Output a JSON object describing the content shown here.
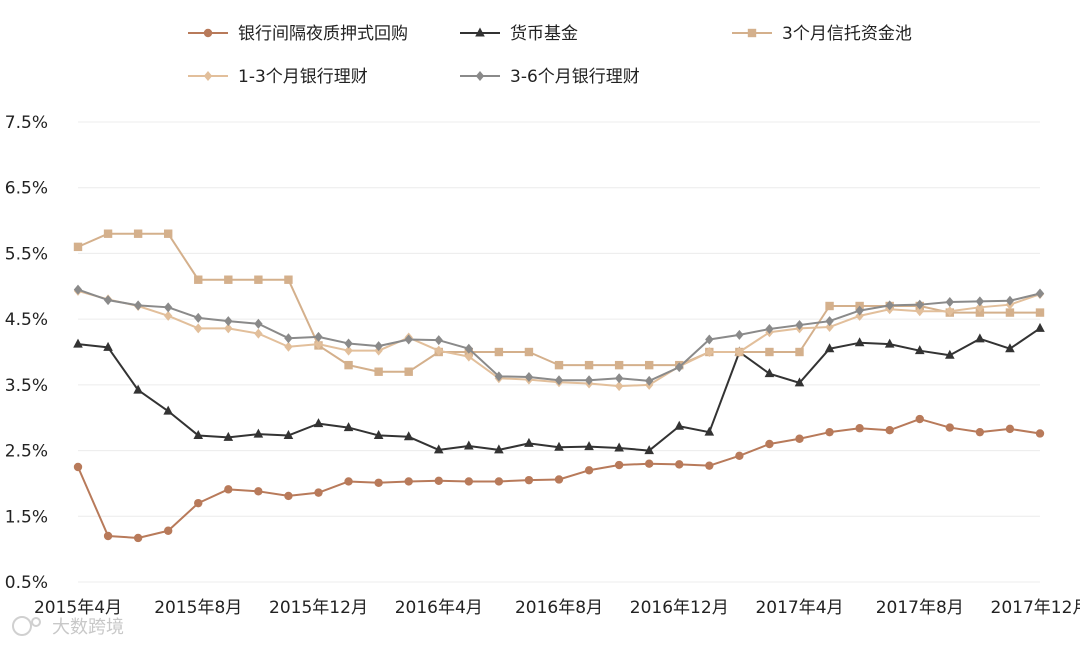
{
  "chart_data": {
    "type": "line",
    "title": "",
    "xlabel": "",
    "ylabel": "",
    "ylim": [
      0.5,
      7.5
    ],
    "yticks": [
      "7.5%",
      "6.5%",
      "5.5%",
      "4.5%",
      "3.5%",
      "2.5%",
      "1.5%",
      "0.5%"
    ],
    "ytick_values": [
      7.5,
      6.5,
      5.5,
      4.5,
      3.5,
      2.5,
      1.5,
      0.5
    ],
    "x": [
      "2015-04",
      "2015-05",
      "2015-06",
      "2015-07",
      "2015-08",
      "2015-09",
      "2015-10",
      "2015-11",
      "2015-12",
      "2016-01",
      "2016-02",
      "2016-03",
      "2016-04",
      "2016-05",
      "2016-06",
      "2016-07",
      "2016-08",
      "2016-09",
      "2016-10",
      "2016-11",
      "2016-12",
      "2017-01",
      "2017-02",
      "2017-03",
      "2017-04",
      "2017-05",
      "2017-06",
      "2017-07",
      "2017-08",
      "2017-09",
      "2017-10",
      "2017-11",
      "2017-12"
    ],
    "xticks": [
      {
        "index": 0,
        "label": "2015年4月"
      },
      {
        "index": 4,
        "label": "2015年8月"
      },
      {
        "index": 8,
        "label": "2015年12月"
      },
      {
        "index": 12,
        "label": "2016年4月"
      },
      {
        "index": 16,
        "label": "2016年8月"
      },
      {
        "index": 20,
        "label": "2016年12月"
      },
      {
        "index": 24,
        "label": "2017年4月"
      },
      {
        "index": 28,
        "label": "2017年8月"
      },
      {
        "index": 32,
        "label": "2017年12月"
      }
    ],
    "grid": true,
    "legend_position": "top",
    "series": [
      {
        "name": "银行间隔夜质押式回购",
        "color": "#b87a5a",
        "marker": "circle",
        "values": [
          2.25,
          1.2,
          1.17,
          1.28,
          1.7,
          1.91,
          1.88,
          1.81,
          1.86,
          2.03,
          2.01,
          2.03,
          2.04,
          2.03,
          2.03,
          2.05,
          2.06,
          2.2,
          2.28,
          2.3,
          2.29,
          2.27,
          2.42,
          2.6,
          2.68,
          2.78,
          2.84,
          2.81,
          2.98,
          2.85,
          2.78,
          2.83,
          2.76
        ]
      },
      {
        "name": "货币基金",
        "color": "#333333",
        "marker": "triangle",
        "values": [
          4.12,
          4.07,
          3.42,
          3.1,
          2.73,
          2.7,
          2.75,
          2.73,
          2.91,
          2.85,
          2.73,
          2.71,
          2.51,
          2.57,
          2.51,
          2.61,
          2.55,
          2.56,
          2.54,
          2.5,
          2.87,
          2.78,
          4.0,
          3.67,
          3.53,
          4.05,
          4.14,
          4.12,
          4.02,
          3.95,
          4.2,
          4.05,
          4.36
        ]
      },
      {
        "name": "3个月信托资金池",
        "color": "#d4b08c",
        "marker": "square",
        "values": [
          5.6,
          5.8,
          5.8,
          5.8,
          5.1,
          5.1,
          5.1,
          5.1,
          4.1,
          3.8,
          3.7,
          3.7,
          4.0,
          4.0,
          4.0,
          4.0,
          3.8,
          3.8,
          3.8,
          3.8,
          3.8,
          4.0,
          4.0,
          4.0,
          4.0,
          4.7,
          4.7,
          4.7,
          4.7,
          4.6,
          4.6,
          4.6,
          4.6
        ]
      },
      {
        "name": "1-3个月银行理财",
        "color": "#e2bf9b",
        "marker": "diamond",
        "values": [
          4.93,
          4.8,
          4.7,
          4.55,
          4.36,
          4.36,
          4.28,
          4.08,
          4.12,
          4.02,
          4.02,
          4.22,
          4.02,
          3.93,
          3.6,
          3.58,
          3.54,
          3.52,
          3.48,
          3.5,
          3.78,
          4.0,
          4.0,
          4.3,
          4.36,
          4.38,
          4.55,
          4.65,
          4.62,
          4.62,
          4.68,
          4.72,
          4.88
        ]
      },
      {
        "name": "3-6个月银行理财",
        "color": "#8a8a8a",
        "marker": "diamond",
        "values": [
          4.95,
          4.79,
          4.71,
          4.68,
          4.52,
          4.47,
          4.43,
          4.21,
          4.23,
          4.13,
          4.09,
          4.19,
          4.18,
          4.05,
          3.63,
          3.62,
          3.57,
          3.57,
          3.6,
          3.56,
          3.77,
          4.19,
          4.26,
          4.35,
          4.41,
          4.47,
          4.63,
          4.71,
          4.72,
          4.76,
          4.77,
          4.78,
          4.89
        ]
      }
    ]
  },
  "watermark": {
    "text": "大数跨境"
  }
}
